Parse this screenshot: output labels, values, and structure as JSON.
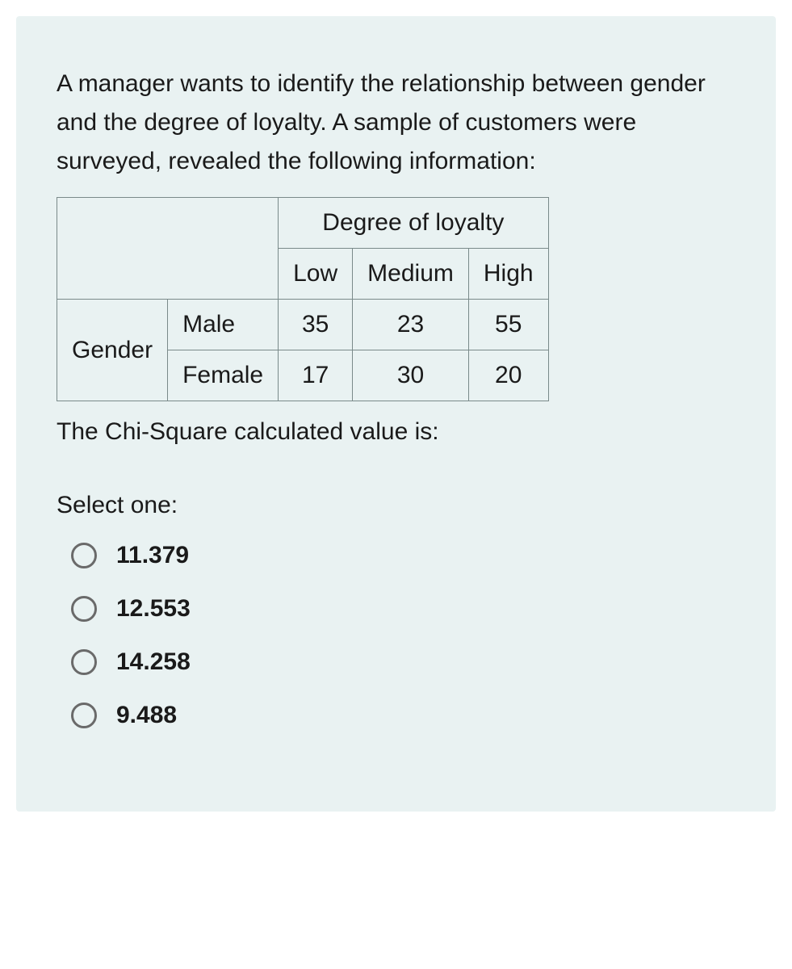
{
  "question": {
    "intro": "A manager wants to identify the relationship between gender and the degree of loyalty. A sample of customers were surveyed, revealed the following information:",
    "followup": "The Chi-Square calculated value is:"
  },
  "table": {
    "type": "table",
    "colgroup_header": "Degree of loyalty",
    "columns": [
      "Low",
      "Medium",
      "High"
    ],
    "rowgroup_header": "Gender",
    "rows": [
      {
        "label": "Male",
        "values": [
          "35",
          "23",
          "55"
        ]
      },
      {
        "label": "Female",
        "values": [
          "17",
          "30",
          "20"
        ]
      }
    ],
    "border_color": "#7a8a8a",
    "text_color": "#1a1a1a",
    "background_color": "#e9f2f2",
    "font_size_pt": 22
  },
  "prompt": {
    "select_label": "Select one:"
  },
  "options": [
    {
      "label": "11.379"
    },
    {
      "label": "12.553"
    },
    {
      "label": "14.258"
    },
    {
      "label": "9.488"
    }
  ],
  "styling": {
    "card_background": "#e9f2f2",
    "page_background": "#ffffff",
    "text_color": "#1a1a1a",
    "radio_border_color": "#6a6a6a",
    "option_font_weight": "bold",
    "body_font_size_pt": 22
  }
}
